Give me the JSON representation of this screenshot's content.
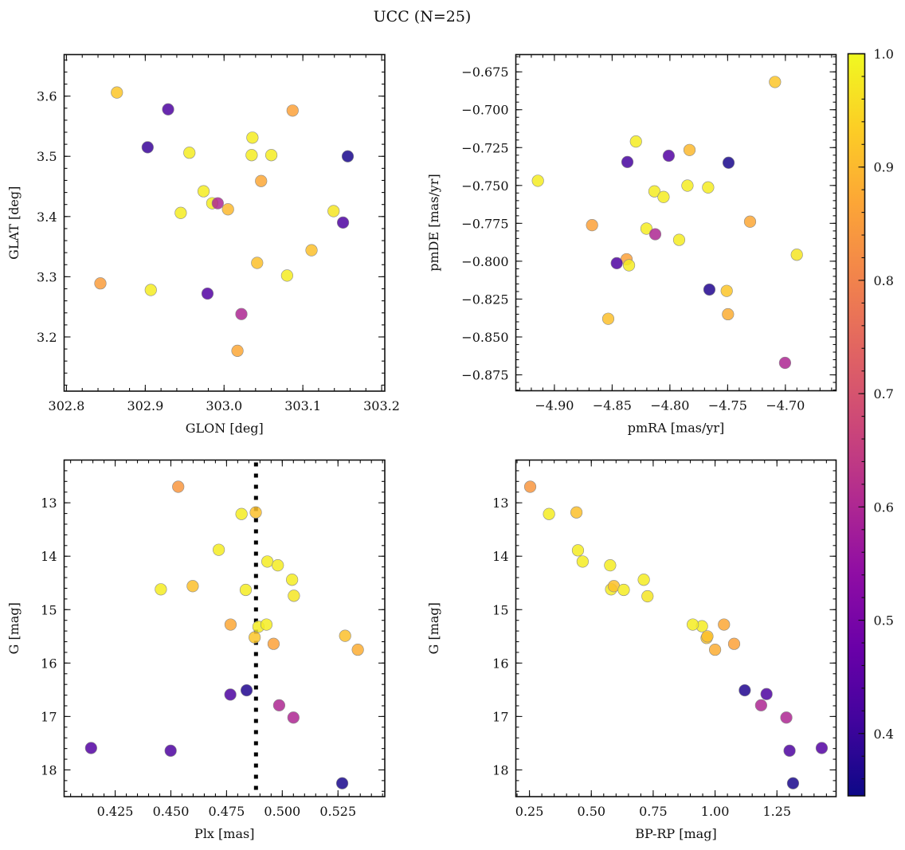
{
  "figure_title": "UCC (N=25)",
  "chart_data": [
    {
      "type": "scatter",
      "panel": "top-left",
      "xlabel": "GLON [deg]",
      "ylabel": "GLAT [deg]",
      "xlim": [
        302.797,
        303.204
      ],
      "ylim": [
        3.11,
        3.669
      ],
      "xticks": [
        302.8,
        302.9,
        303.0,
        303.1,
        303.2
      ],
      "xtick_labels": [
        "302.8",
        "302.9",
        "303.0",
        "303.1",
        "303.2"
      ],
      "yticks": [
        3.2,
        3.3,
        3.4,
        3.5,
        3.6
      ],
      "ytick_labels": [
        "3.2",
        "3.3",
        "3.4",
        "3.5",
        "3.6"
      ],
      "x_minor_step": 0.02,
      "y_minor_step": 0.02,
      "y_inverted": false,
      "points": [
        {
          "x": 302.864,
          "y": 3.606,
          "c": 0.92
        },
        {
          "x": 302.929,
          "y": 3.578,
          "c": 0.43
        },
        {
          "x": 303.087,
          "y": 3.576,
          "c": 0.86
        },
        {
          "x": 303.036,
          "y": 3.531,
          "c": 0.98
        },
        {
          "x": 302.903,
          "y": 3.515,
          "c": 0.4
        },
        {
          "x": 302.956,
          "y": 3.506,
          "c": 0.98
        },
        {
          "x": 303.035,
          "y": 3.502,
          "c": 0.98
        },
        {
          "x": 303.06,
          "y": 3.502,
          "c": 0.98
        },
        {
          "x": 303.157,
          "y": 3.5,
          "c": 0.36
        },
        {
          "x": 303.047,
          "y": 3.459,
          "c": 0.87
        },
        {
          "x": 302.974,
          "y": 3.442,
          "c": 0.98
        },
        {
          "x": 302.985,
          "y": 3.422,
          "c": 0.98
        },
        {
          "x": 302.992,
          "y": 3.422,
          "c": 0.6
        },
        {
          "x": 303.005,
          "y": 3.412,
          "c": 0.9
        },
        {
          "x": 303.139,
          "y": 3.409,
          "c": 0.97
        },
        {
          "x": 302.945,
          "y": 3.406,
          "c": 0.98
        },
        {
          "x": 303.151,
          "y": 3.39,
          "c": 0.43
        },
        {
          "x": 303.111,
          "y": 3.344,
          "c": 0.91
        },
        {
          "x": 303.042,
          "y": 3.323,
          "c": 0.91
        },
        {
          "x": 303.08,
          "y": 3.302,
          "c": 0.98
        },
        {
          "x": 302.843,
          "y": 3.289,
          "c": 0.85
        },
        {
          "x": 302.907,
          "y": 3.278,
          "c": 0.98
        },
        {
          "x": 302.979,
          "y": 3.272,
          "c": 0.44
        },
        {
          "x": 303.022,
          "y": 3.238,
          "c": 0.6
        },
        {
          "x": 303.017,
          "y": 3.177,
          "c": 0.87
        }
      ]
    },
    {
      "type": "scatter",
      "panel": "top-right",
      "xlabel": "pmRA [mas/yr]",
      "ylabel": "pmDE [mas/yr]",
      "xlim": [
        -4.9334,
        -4.6561
      ],
      "ylim": [
        -0.8855,
        -0.6636
      ],
      "xticks": [
        -4.9,
        -4.85,
        -4.8,
        -4.75,
        -4.7
      ],
      "xtick_labels": [
        "−4.90",
        "−4.85",
        "−4.80",
        "−4.75",
        "−4.70"
      ],
      "yticks": [
        -0.875,
        -0.85,
        -0.825,
        -0.8,
        -0.775,
        -0.75,
        -0.725,
        -0.7,
        -0.675
      ],
      "ytick_labels": [
        "−0.875",
        "−0.850",
        "−0.825",
        "−0.800",
        "−0.775",
        "−0.750",
        "−0.725",
        "−0.700",
        "−0.675"
      ],
      "x_minor_step": 0.01,
      "y_minor_step": 0.005,
      "y_inverted": false,
      "points": [
        {
          "x": -4.709,
          "y": -0.6817,
          "c": 0.92
        },
        {
          "x": -4.8294,
          "y": -0.721,
          "c": 0.98
        },
        {
          "x": -4.783,
          "y": -0.7266,
          "c": 0.9
        },
        {
          "x": -4.801,
          "y": -0.7304,
          "c": 0.44
        },
        {
          "x": -4.8368,
          "y": -0.7345,
          "c": 0.42
        },
        {
          "x": -4.7492,
          "y": -0.735,
          "c": 0.36
        },
        {
          "x": -4.9143,
          "y": -0.7469,
          "c": 0.98
        },
        {
          "x": -4.7848,
          "y": -0.7501,
          "c": 0.98
        },
        {
          "x": -4.7669,
          "y": -0.7513,
          "c": 0.98
        },
        {
          "x": -4.8134,
          "y": -0.7539,
          "c": 0.98
        },
        {
          "x": -4.8055,
          "y": -0.7576,
          "c": 0.98
        },
        {
          "x": -4.7306,
          "y": -0.7739,
          "c": 0.87
        },
        {
          "x": -4.8674,
          "y": -0.7762,
          "c": 0.86
        },
        {
          "x": -4.8203,
          "y": -0.7785,
          "c": 0.98
        },
        {
          "x": -4.8127,
          "y": -0.7822,
          "c": 0.6
        },
        {
          "x": -4.792,
          "y": -0.7859,
          "c": 0.98
        },
        {
          "x": -4.6901,
          "y": -0.7957,
          "c": 0.97
        },
        {
          "x": -4.8375,
          "y": -0.7987,
          "c": 0.86
        },
        {
          "x": -4.846,
          "y": -0.8013,
          "c": 0.43
        },
        {
          "x": -4.8354,
          "y": -0.8027,
          "c": 0.98
        },
        {
          "x": -4.7658,
          "y": -0.8187,
          "c": 0.37
        },
        {
          "x": -4.7508,
          "y": -0.8196,
          "c": 0.92
        },
        {
          "x": -4.7497,
          "y": -0.835,
          "c": 0.88
        },
        {
          "x": -4.8534,
          "y": -0.838,
          "c": 0.91
        },
        {
          "x": -4.7003,
          "y": -0.8671,
          "c": 0.6
        }
      ]
    },
    {
      "type": "scatter",
      "panel": "bottom-left",
      "xlabel": "Plx [mas]",
      "ylabel": "G [mag]",
      "xlim": [
        0.4021,
        0.546
      ],
      "ylim": [
        18.5,
        12.2
      ],
      "xticks": [
        0.425,
        0.45,
        0.475,
        0.5,
        0.525
      ],
      "xtick_labels": [
        "0.425",
        "0.450",
        "0.475",
        "0.500",
        "0.525"
      ],
      "yticks": [
        13,
        14,
        15,
        16,
        17,
        18
      ],
      "ytick_labels": [
        "13",
        "14",
        "15",
        "16",
        "17",
        "18"
      ],
      "x_minor_step": 0.005,
      "y_minor_step": 0.2,
      "y_inverted": true,
      "vline": {
        "x": 0.4882,
        "style": "dotted",
        "color": "#000000"
      },
      "points": [
        {
          "x": 0.4533,
          "y": 12.7,
          "c": 0.84
        },
        {
          "x": 0.4817,
          "y": 13.21,
          "c": 0.98
        },
        {
          "x": 0.4881,
          "y": 13.18,
          "c": 0.91
        },
        {
          "x": 0.4715,
          "y": 13.88,
          "c": 0.98
        },
        {
          "x": 0.4933,
          "y": 14.1,
          "c": 0.98
        },
        {
          "x": 0.498,
          "y": 14.17,
          "c": 0.98
        },
        {
          "x": 0.5044,
          "y": 14.44,
          "c": 0.98
        },
        {
          "x": 0.4455,
          "y": 14.62,
          "c": 0.98
        },
        {
          "x": 0.4598,
          "y": 14.56,
          "c": 0.91
        },
        {
          "x": 0.4836,
          "y": 14.63,
          "c": 0.98
        },
        {
          "x": 0.5052,
          "y": 14.74,
          "c": 0.97
        },
        {
          "x": 0.4768,
          "y": 15.28,
          "c": 0.87
        },
        {
          "x": 0.4893,
          "y": 15.32,
          "c": 0.98
        },
        {
          "x": 0.4929,
          "y": 15.28,
          "c": 0.98
        },
        {
          "x": 0.4876,
          "y": 15.52,
          "c": 0.92
        },
        {
          "x": 0.4961,
          "y": 15.64,
          "c": 0.86
        },
        {
          "x": 0.5282,
          "y": 15.49,
          "c": 0.91
        },
        {
          "x": 0.5339,
          "y": 15.75,
          "c": 0.88
        },
        {
          "x": 0.4767,
          "y": 16.59,
          "c": 0.43
        },
        {
          "x": 0.484,
          "y": 16.51,
          "c": 0.37
        },
        {
          "x": 0.4986,
          "y": 16.79,
          "c": 0.6
        },
        {
          "x": 0.505,
          "y": 17.02,
          "c": 0.6
        },
        {
          "x": 0.4142,
          "y": 17.59,
          "c": 0.44
        },
        {
          "x": 0.4499,
          "y": 17.64,
          "c": 0.43
        },
        {
          "x": 0.5269,
          "y": 18.25,
          "c": 0.36
        }
      ]
    },
    {
      "type": "scatter",
      "panel": "bottom-right",
      "xlabel": "BP-RP [mag]",
      "ylabel": "G [mag]",
      "xlim": [
        0.195,
        1.489
      ],
      "ylim": [
        18.5,
        12.2
      ],
      "xticks": [
        0.25,
        0.5,
        0.75,
        1.0,
        1.25
      ],
      "xtick_labels": [
        "0.25",
        "0.50",
        "0.75",
        "1.00",
        "1.25"
      ],
      "yticks": [
        13,
        14,
        15,
        16,
        17,
        18
      ],
      "ytick_labels": [
        "13",
        "14",
        "15",
        "16",
        "17",
        "18"
      ],
      "x_minor_step": 0.05,
      "y_minor_step": 0.2,
      "y_inverted": true,
      "points": [
        {
          "x": 0.253,
          "y": 12.7,
          "c": 0.84
        },
        {
          "x": 0.329,
          "y": 13.21,
          "c": 0.98
        },
        {
          "x": 0.44,
          "y": 13.18,
          "c": 0.91
        },
        {
          "x": 0.446,
          "y": 13.89,
          "c": 0.98
        },
        {
          "x": 0.465,
          "y": 14.1,
          "c": 0.98
        },
        {
          "x": 0.576,
          "y": 14.17,
          "c": 0.98
        },
        {
          "x": 0.712,
          "y": 14.44,
          "c": 0.98
        },
        {
          "x": 0.58,
          "y": 14.62,
          "c": 0.98
        },
        {
          "x": 0.591,
          "y": 14.56,
          "c": 0.91
        },
        {
          "x": 0.631,
          "y": 14.63,
          "c": 0.98
        },
        {
          "x": 0.727,
          "y": 14.75,
          "c": 0.97
        },
        {
          "x": 1.036,
          "y": 15.28,
          "c": 0.87
        },
        {
          "x": 0.947,
          "y": 15.31,
          "c": 0.98
        },
        {
          "x": 0.91,
          "y": 15.28,
          "c": 0.98
        },
        {
          "x": 0.966,
          "y": 15.53,
          "c": 0.92
        },
        {
          "x": 1.077,
          "y": 15.64,
          "c": 0.86
        },
        {
          "x": 0.969,
          "y": 15.5,
          "c": 0.91
        },
        {
          "x": 1.0,
          "y": 15.75,
          "c": 0.88
        },
        {
          "x": 1.208,
          "y": 16.58,
          "c": 0.43
        },
        {
          "x": 1.12,
          "y": 16.51,
          "c": 0.37
        },
        {
          "x": 1.186,
          "y": 16.79,
          "c": 0.6
        },
        {
          "x": 1.288,
          "y": 17.02,
          "c": 0.6
        },
        {
          "x": 1.431,
          "y": 17.59,
          "c": 0.44
        },
        {
          "x": 1.301,
          "y": 17.64,
          "c": 0.43
        },
        {
          "x": 1.315,
          "y": 18.25,
          "c": 0.36
        }
      ]
    }
  ],
  "colorbar": {
    "colormap": "plasma",
    "range": [
      0.345,
      1.0
    ],
    "ticks": [
      0.4,
      0.5,
      0.6,
      0.7,
      0.8,
      0.9,
      1.0
    ],
    "tick_labels": [
      "0.4",
      "0.5",
      "0.6",
      "0.7",
      "0.8",
      "0.9",
      "1.0"
    ],
    "minor_step": 0.02
  }
}
